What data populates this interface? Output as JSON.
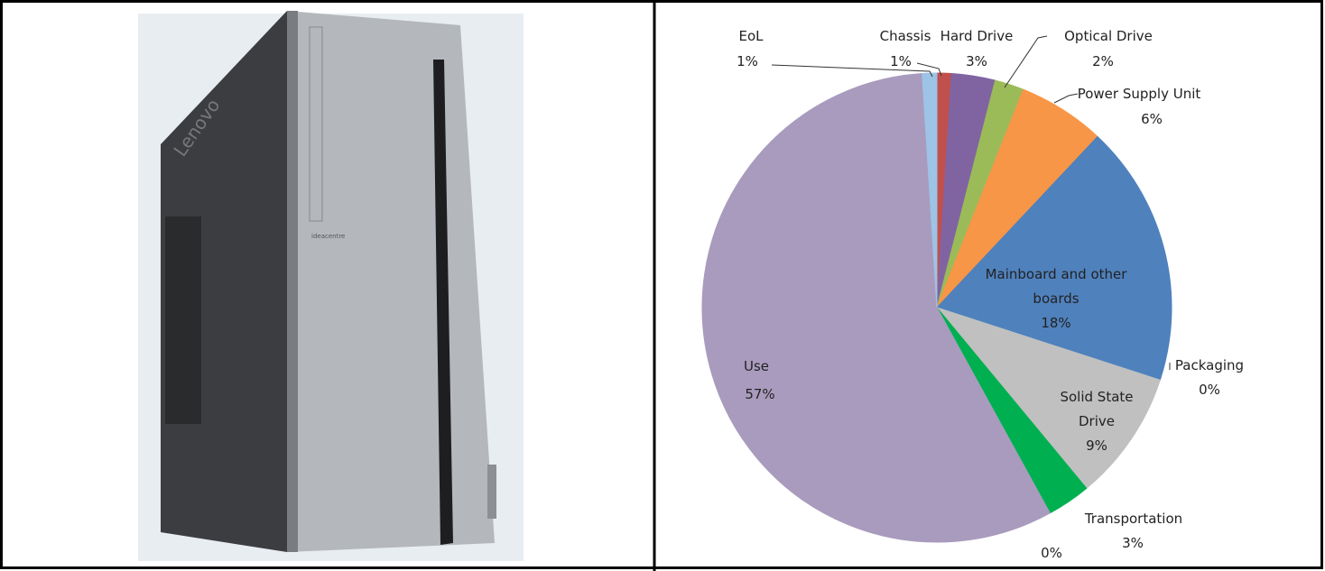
{
  "product_image": {
    "brand": "Lenovo",
    "model": "ideacentre"
  },
  "chart_data": {
    "type": "pie",
    "categories": [
      "Chassis",
      "Hard Drive",
      "Optical Drive",
      "Power Supply Unit",
      "Mainboard and other boards",
      "Packaging",
      "Solid State Drive",
      "Transportation",
      null,
      "Use",
      "EoL"
    ],
    "values": [
      1,
      3,
      2,
      6,
      18,
      0,
      9,
      3,
      0,
      57,
      1
    ],
    "value_labels": [
      "1%",
      "3%",
      "2%",
      "6%",
      "18%",
      "0%",
      "9%",
      "3%",
      "0%",
      "57%",
      "1%"
    ],
    "colors": [
      "#c0504d",
      "#8064a2",
      "#9bbb59",
      "#f79646",
      "#4f81bd",
      "#4bacc6",
      "#c0c0c0",
      "#00b050",
      "#8eb4e3",
      "#a99bbd",
      "#9dc3e6"
    ]
  }
}
